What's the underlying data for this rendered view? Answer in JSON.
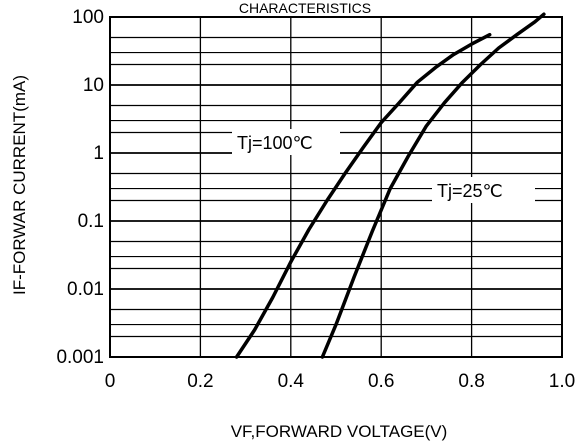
{
  "chart_data": {
    "type": "line",
    "title": "CHARACTERISTICS",
    "xlabel": "VF,FORWARD VOLTAGE(V)",
    "ylabel": "IF-FORWAR CURRENT(mA)",
    "xlim": [
      0,
      1.0
    ],
    "ylim": [
      0.001,
      100
    ],
    "yscale": "log",
    "grid": true,
    "x_ticks": [
      "0",
      "0.2",
      "0.4",
      "0.6",
      "0.8",
      "1.0"
    ],
    "y_ticks": [
      "0.001",
      "0.01",
      "0.1",
      "1",
      "10",
      "100"
    ],
    "series": [
      {
        "name": "Tj=100℃",
        "x": [
          0.28,
          0.32,
          0.36,
          0.4,
          0.44,
          0.48,
          0.52,
          0.56,
          0.6,
          0.64,
          0.68,
          0.72,
          0.76,
          0.8,
          0.84
        ],
        "y": [
          0.001,
          0.0025,
          0.0075,
          0.025,
          0.075,
          0.2,
          0.5,
          1.2,
          2.8,
          5.5,
          11,
          18,
          28,
          40,
          55
        ]
      },
      {
        "name": "Tj=25℃",
        "x": [
          0.47,
          0.5,
          0.54,
          0.58,
          0.62,
          0.66,
          0.7,
          0.74,
          0.78,
          0.82,
          0.86,
          0.9,
          0.94,
          0.96
        ],
        "y": [
          0.001,
          0.003,
          0.015,
          0.07,
          0.3,
          0.9,
          2.5,
          5.5,
          11,
          20,
          35,
          55,
          85,
          110
        ]
      }
    ]
  }
}
